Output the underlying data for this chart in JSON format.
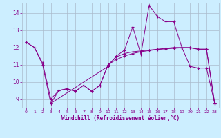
{
  "title": "",
  "xlabel": "Windchill (Refroidissement éolien,°C)",
  "bg_color": "#cceeff",
  "line_color": "#880088",
  "grid_color": "#aabbcc",
  "xlim": [
    -0.5,
    23.5
  ],
  "ylim": [
    8.5,
    14.6
  ],
  "xticks": [
    0,
    1,
    2,
    3,
    4,
    5,
    6,
    7,
    8,
    9,
    10,
    11,
    12,
    13,
    14,
    15,
    16,
    17,
    18,
    19,
    20,
    21,
    22,
    23
  ],
  "yticks": [
    9,
    10,
    11,
    12,
    13,
    14
  ],
  "line1_x": [
    0,
    1,
    2,
    3,
    10,
    11,
    12,
    13,
    14,
    15,
    16,
    17,
    18,
    19,
    20,
    21,
    22,
    23
  ],
  "line1_y": [
    12.3,
    12.0,
    11.0,
    8.75,
    10.9,
    11.5,
    11.85,
    13.2,
    11.6,
    14.45,
    13.8,
    13.5,
    13.5,
    12.0,
    10.9,
    10.8,
    10.8,
    8.75
  ],
  "line2_x": [
    0,
    1,
    2,
    3,
    4,
    5,
    6,
    7,
    8,
    9,
    10,
    11,
    12,
    13,
    14,
    15,
    16,
    17,
    18,
    19,
    20,
    21,
    22,
    23
  ],
  "line2_y": [
    12.3,
    12.0,
    11.1,
    9.0,
    9.5,
    9.6,
    9.45,
    9.8,
    9.45,
    9.8,
    11.0,
    11.45,
    11.65,
    11.75,
    11.8,
    11.85,
    11.9,
    11.95,
    12.0,
    12.0,
    12.0,
    11.9,
    11.9,
    8.75
  ],
  "line3_x": [
    3,
    4,
    5,
    6,
    7,
    8,
    9,
    10,
    11,
    12,
    13,
    14,
    15,
    16,
    17,
    18,
    19,
    20,
    21,
    22,
    23
  ],
  "line3_y": [
    8.75,
    9.5,
    9.6,
    9.45,
    9.8,
    9.45,
    9.8,
    11.0,
    11.3,
    11.5,
    11.65,
    11.75,
    11.82,
    11.88,
    11.92,
    11.95,
    11.98,
    11.98,
    11.9,
    11.9,
    8.75
  ]
}
